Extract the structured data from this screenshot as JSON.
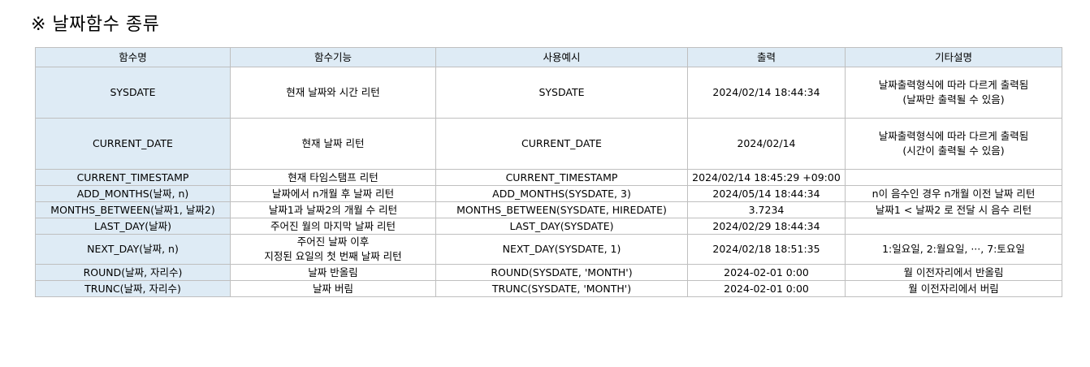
{
  "heading": "※ 날짜함수 종류",
  "table": {
    "headers": [
      "함수명",
      "함수기능",
      "사용예시",
      "출력",
      "기타설명"
    ],
    "rows": [
      {
        "name": "SYSDATE",
        "function": [
          "현재 날짜와 시간 리턴"
        ],
        "example": "SYSDATE",
        "output": "2024/02/14 18:44:34",
        "note": [
          "날짜출력형식에 따라 다르게 출력됨",
          "(날짜만 출력될 수 있음)"
        ]
      },
      {
        "name": "CURRENT_DATE",
        "function": [
          "현재 날짜 리턴"
        ],
        "example": "CURRENT_DATE",
        "output": "2024/02/14",
        "note": [
          "날짜출력형식에 따라 다르게 출력됨",
          "(시간이 출력될 수 있음)"
        ]
      },
      {
        "name": "CURRENT_TIMESTAMP",
        "function": [
          "현재 타임스탬프 리턴"
        ],
        "example": "CURRENT_TIMESTAMP",
        "output": "2024/02/14 18:45:29 +09:00",
        "note": [
          ""
        ]
      },
      {
        "name": "ADD_MONTHS(날짜, n)",
        "function": [
          "날짜에서 n개월 후 날짜 리턴"
        ],
        "example": "ADD_MONTHS(SYSDATE, 3)",
        "output": "2024/05/14 18:44:34",
        "note": [
          "n이 음수인 경우 n개월 이전 날짜 리턴"
        ]
      },
      {
        "name": "MONTHS_BETWEEN(날짜1, 날짜2)",
        "function": [
          "날짜1과 날짜2의 개월 수 리턴"
        ],
        "example": "MONTHS_BETWEEN(SYSDATE, HIREDATE)",
        "output": "3.7234",
        "note": [
          "날짜1 < 날짜2 로 전달 시 음수 리턴"
        ]
      },
      {
        "name": "LAST_DAY(날짜)",
        "function": [
          "주어진 월의 마지막 날짜 리턴"
        ],
        "example": "LAST_DAY(SYSDATE)",
        "output": "2024/02/29 18:44:34",
        "note": [
          ""
        ]
      },
      {
        "name": "NEXT_DAY(날짜, n)",
        "function": [
          "주어진 날짜 이후",
          "지정된 요일의 첫 번째 날짜 리턴"
        ],
        "example": "NEXT_DAY(SYSDATE, 1)",
        "output": "2024/02/18 18:51:35",
        "note": [
          "1:일요일, 2:월요일, ···, 7:토요일"
        ]
      },
      {
        "name": "ROUND(날짜, 자리수)",
        "function": [
          "날짜 반올림"
        ],
        "example": "ROUND(SYSDATE, 'MONTH')",
        "output": "2024-02-01 0:00",
        "note": [
          "월 이전자리에서 반올림"
        ]
      },
      {
        "name": "TRUNC(날짜, 자리수)",
        "function": [
          "날짜 버림"
        ],
        "example": "TRUNC(SYSDATE, 'MONTH')",
        "output": "2024-02-01 0:00",
        "note": [
          "월 이전자리에서 버림"
        ]
      }
    ]
  }
}
